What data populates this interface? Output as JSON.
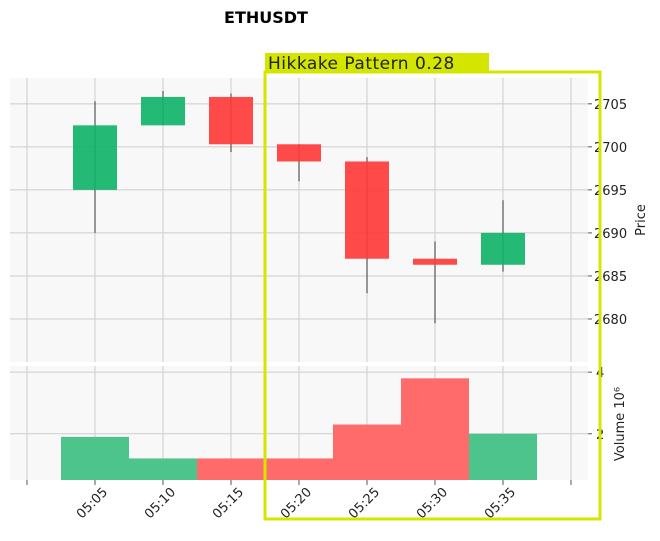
{
  "chart_data": {
    "type": "candlestick",
    "title": "ETHUSDT",
    "x_tick_labels": [
      "05:05",
      "05:10",
      "05:15",
      "05:20",
      "05:25",
      "05:30",
      "05:35"
    ],
    "price_axis": {
      "label": "Price",
      "ticks": [
        2680,
        2685,
        2690,
        2695,
        2700,
        2705
      ],
      "range": [
        2675,
        2708
      ],
      "position": "right",
      "grid": true
    },
    "volume_axis": {
      "label": "Volume",
      "multiplier_label": "10⁶",
      "ticks": [
        2,
        4
      ],
      "tick_labels": [
        "2",
        "4"
      ],
      "range": [
        0.5,
        4.2
      ],
      "position": "right",
      "grid": true
    },
    "candles": [
      {
        "time": "05:05",
        "open": 2695.0,
        "high": 2705.3,
        "low": 2690.0,
        "close": 2702.5,
        "volume": 1.9,
        "direction": "up"
      },
      {
        "time": "05:10",
        "open": 2702.5,
        "high": 2706.5,
        "low": 2702.5,
        "close": 2705.8,
        "volume": 1.2,
        "direction": "up"
      },
      {
        "time": "05:15",
        "open": 2705.8,
        "high": 2706.2,
        "low": 2699.4,
        "close": 2700.3,
        "volume": 1.2,
        "direction": "down"
      },
      {
        "time": "05:20",
        "open": 2700.3,
        "high": 2700.3,
        "low": 2696.0,
        "close": 2698.3,
        "volume": 1.2,
        "direction": "down"
      },
      {
        "time": "05:25",
        "open": 2698.3,
        "high": 2698.8,
        "low": 2683.0,
        "close": 2687.0,
        "volume": 2.3,
        "direction": "down"
      },
      {
        "time": "05:30",
        "open": 2687.0,
        "high": 2689.0,
        "low": 2679.5,
        "close": 2686.3,
        "volume": 3.8,
        "direction": "down"
      },
      {
        "time": "05:35",
        "open": 2686.3,
        "high": 2693.8,
        "low": 2685.5,
        "close": 2690.0,
        "volume": 2.0,
        "direction": "up"
      }
    ],
    "annotation": {
      "label": "Hikkake Pattern 0.28",
      "start": "05:20",
      "end": "05:35"
    },
    "colors": {
      "up": "#12b36a",
      "down": "#ff3b3b",
      "up_volume": "#4cc48c",
      "down_volume": "#ff6b6b",
      "annotation": "#d4e600",
      "panel_background": "#f8f8f8",
      "grid": "#cccccc"
    }
  }
}
